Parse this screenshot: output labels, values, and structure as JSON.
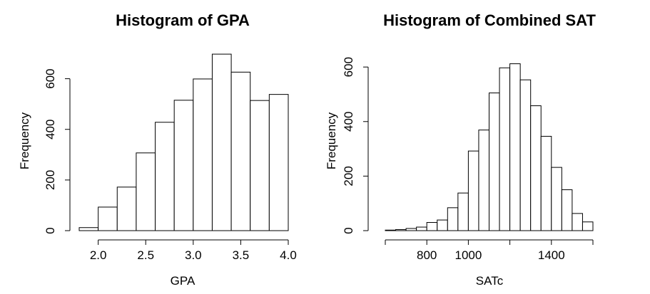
{
  "chart_data": [
    {
      "type": "bar",
      "title": "Histogram of GPA",
      "xlabel": "GPA",
      "ylabel": "Frequency",
      "bins": [
        {
          "start": 1.8,
          "end": 2.0,
          "value": 12
        },
        {
          "start": 2.0,
          "end": 2.2,
          "value": 93
        },
        {
          "start": 2.2,
          "end": 2.4,
          "value": 172
        },
        {
          "start": 2.4,
          "end": 2.6,
          "value": 307
        },
        {
          "start": 2.6,
          "end": 2.8,
          "value": 428
        },
        {
          "start": 2.8,
          "end": 3.0,
          "value": 515
        },
        {
          "start": 3.0,
          "end": 3.2,
          "value": 599
        },
        {
          "start": 3.2,
          "end": 3.4,
          "value": 697
        },
        {
          "start": 3.4,
          "end": 3.6,
          "value": 626
        },
        {
          "start": 3.6,
          "end": 3.8,
          "value": 514
        },
        {
          "start": 3.8,
          "end": 4.0,
          "value": 538
        }
      ],
      "xlim": [
        1.8,
        4.0
      ],
      "ylim": [
        0,
        700
      ],
      "xticks": [
        {
          "value": 2.0,
          "label": "2.0"
        },
        {
          "value": 2.5,
          "label": "2.5"
        },
        {
          "value": 3.0,
          "label": "3.0"
        },
        {
          "value": 3.5,
          "label": "3.5"
        },
        {
          "value": 4.0,
          "label": "4.0"
        }
      ],
      "yticks": [
        {
          "value": 0,
          "label": "0"
        },
        {
          "value": 200,
          "label": "200"
        },
        {
          "value": 400,
          "label": "400"
        },
        {
          "value": 600,
          "label": "600"
        }
      ],
      "grid": false
    },
    {
      "type": "bar",
      "title": "Histogram of Combined SAT",
      "xlabel": "SATc",
      "ylabel": "Frequency",
      "bins": [
        {
          "start": 600,
          "end": 650,
          "value": 2
        },
        {
          "start": 650,
          "end": 700,
          "value": 4
        },
        {
          "start": 700,
          "end": 750,
          "value": 8
        },
        {
          "start": 750,
          "end": 800,
          "value": 13
        },
        {
          "start": 800,
          "end": 850,
          "value": 30
        },
        {
          "start": 850,
          "end": 900,
          "value": 39
        },
        {
          "start": 900,
          "end": 950,
          "value": 84
        },
        {
          "start": 950,
          "end": 1000,
          "value": 138
        },
        {
          "start": 1000,
          "end": 1050,
          "value": 292
        },
        {
          "start": 1050,
          "end": 1100,
          "value": 369
        },
        {
          "start": 1100,
          "end": 1150,
          "value": 505
        },
        {
          "start": 1150,
          "end": 1200,
          "value": 597
        },
        {
          "start": 1200,
          "end": 1250,
          "value": 612
        },
        {
          "start": 1250,
          "end": 1300,
          "value": 553
        },
        {
          "start": 1300,
          "end": 1350,
          "value": 458
        },
        {
          "start": 1350,
          "end": 1400,
          "value": 346
        },
        {
          "start": 1400,
          "end": 1450,
          "value": 232
        },
        {
          "start": 1450,
          "end": 1500,
          "value": 150
        },
        {
          "start": 1500,
          "end": 1550,
          "value": 63
        },
        {
          "start": 1550,
          "end": 1600,
          "value": 32
        }
      ],
      "xlim": [
        600,
        1600
      ],
      "ylim": [
        0,
        650
      ],
      "xticks": [
        {
          "value": 600,
          "label": ""
        },
        {
          "value": 800,
          "label": "800"
        },
        {
          "value": 1000,
          "label": "1000"
        },
        {
          "value": 1200,
          "label": ""
        },
        {
          "value": 1400,
          "label": "1400"
        },
        {
          "value": 1600,
          "label": ""
        }
      ],
      "yticks": [
        {
          "value": 0,
          "label": "0"
        },
        {
          "value": 200,
          "label": "200"
        },
        {
          "value": 400,
          "label": "400"
        },
        {
          "value": 600,
          "label": "600"
        }
      ],
      "grid": false
    }
  ]
}
